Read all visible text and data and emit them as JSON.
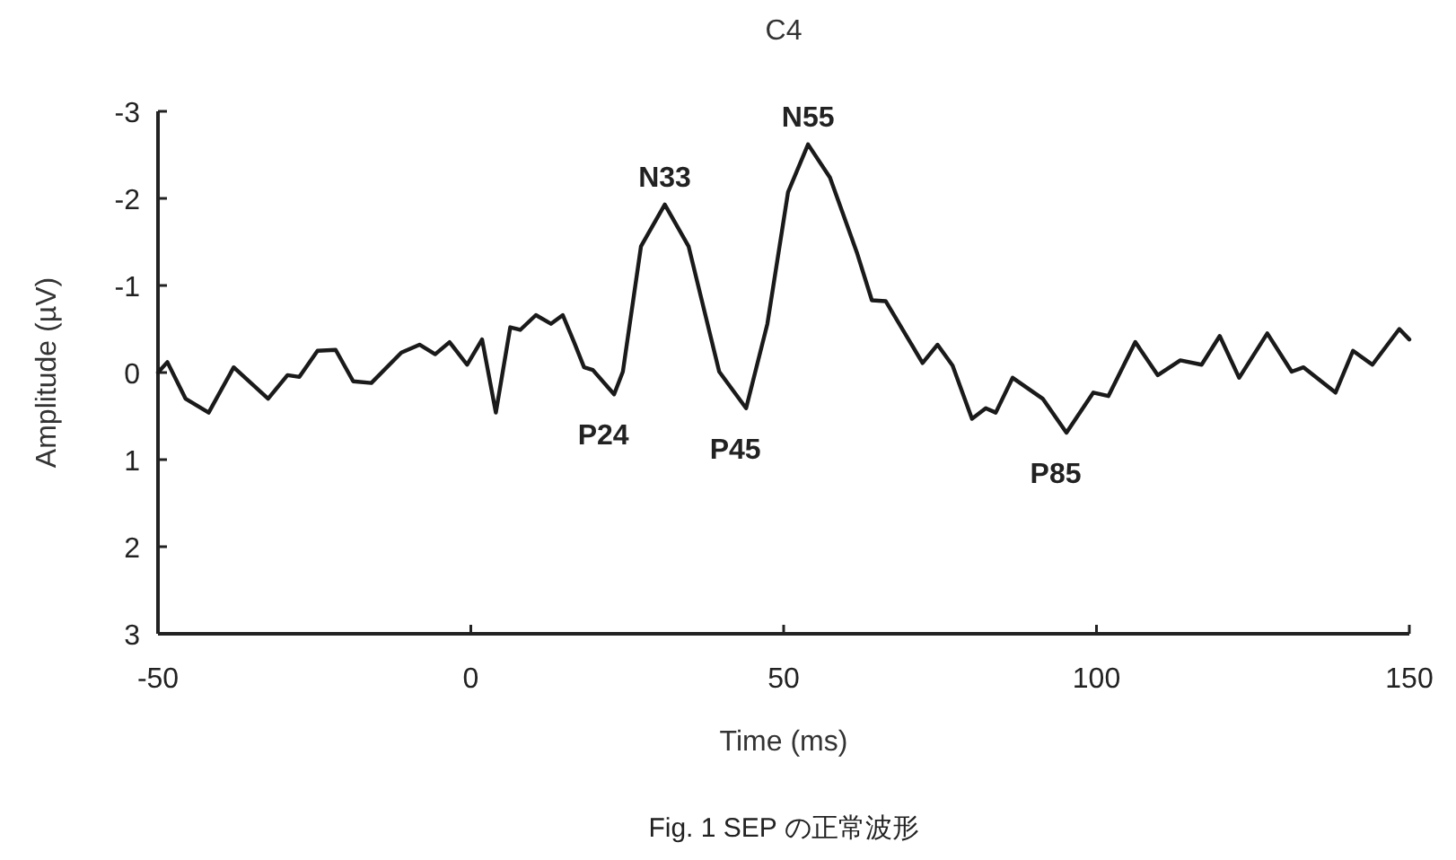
{
  "chart_data": {
    "type": "line",
    "title": "C4",
    "xlabel": "Time (ms)",
    "ylabel": "Amplitude (µV)",
    "xlim": [
      -50,
      150
    ],
    "xticks": [
      -50,
      0,
      50,
      100,
      150
    ],
    "ylim": [
      3,
      -3
    ],
    "yticks": [
      -3,
      -2,
      -1,
      0,
      1,
      2,
      3
    ],
    "grid": false,
    "marker": "none",
    "line_style": "solid",
    "series": [
      {
        "color": "#1a1a1a",
        "x": [
          -50,
          -48.5,
          -45.6,
          -41.9,
          -37.9,
          -32.4,
          -29.3,
          -27.4,
          -24.5,
          -21.6,
          -18.8,
          -15.9,
          -11.1,
          -8.2,
          -5.7,
          -3.4,
          -0.6,
          1.8,
          4.0,
          6.3,
          7.9,
          10.4,
          12.8,
          14.7,
          16.5,
          18.1,
          19.5,
          22.9,
          24.3,
          27.2,
          31.0,
          34.8,
          39.7,
          44.0,
          47.4,
          50.7,
          53.9,
          57.4,
          61.7,
          64.1,
          66.3,
          72.2,
          74.6,
          77.0,
          80.1,
          82.3,
          83.9,
          86.6,
          91.4,
          95.2,
          99.5,
          101.9,
          106.2,
          109.8,
          113.4,
          116.8,
          119.7,
          122.8,
          127.3,
          131.2,
          133.1,
          138.2,
          141.0,
          144.1,
          148.4,
          150
        ],
        "values": [
          0.0,
          -0.12,
          0.3,
          0.46,
          -0.06,
          0.3,
          0.03,
          0.05,
          -0.25,
          -0.26,
          0.1,
          0.12,
          -0.23,
          -0.32,
          -0.21,
          -0.35,
          -0.09,
          -0.38,
          0.46,
          -0.52,
          -0.49,
          -0.66,
          -0.56,
          -0.66,
          -0.35,
          -0.06,
          -0.03,
          0.25,
          -0.01,
          -1.45,
          -1.93,
          -1.45,
          -0.01,
          0.41,
          -0.56,
          -2.07,
          -2.62,
          -2.24,
          -1.38,
          -0.83,
          -0.82,
          -0.11,
          -0.32,
          -0.08,
          0.53,
          0.41,
          0.46,
          0.06,
          0.3,
          0.69,
          0.23,
          0.27,
          -0.35,
          0.03,
          -0.14,
          -0.09,
          -0.42,
          0.06,
          -0.45,
          -0.01,
          -0.06,
          0.23,
          -0.25,
          -0.09,
          -0.5,
          -0.38
        ]
      }
    ],
    "annotations": [
      {
        "text": "N33",
        "x": 31.0,
        "y": -1.93
      },
      {
        "text": "N55",
        "x": 53.9,
        "y": -2.62
      },
      {
        "text": "P24",
        "x": 22.9,
        "y": 0.25
      },
      {
        "text": "P45",
        "x": 44.0,
        "y": 0.41
      },
      {
        "text": "P85",
        "x": 95.2,
        "y": 0.69
      },
      "Fig. 1  SEP の正常波形"
    ]
  }
}
